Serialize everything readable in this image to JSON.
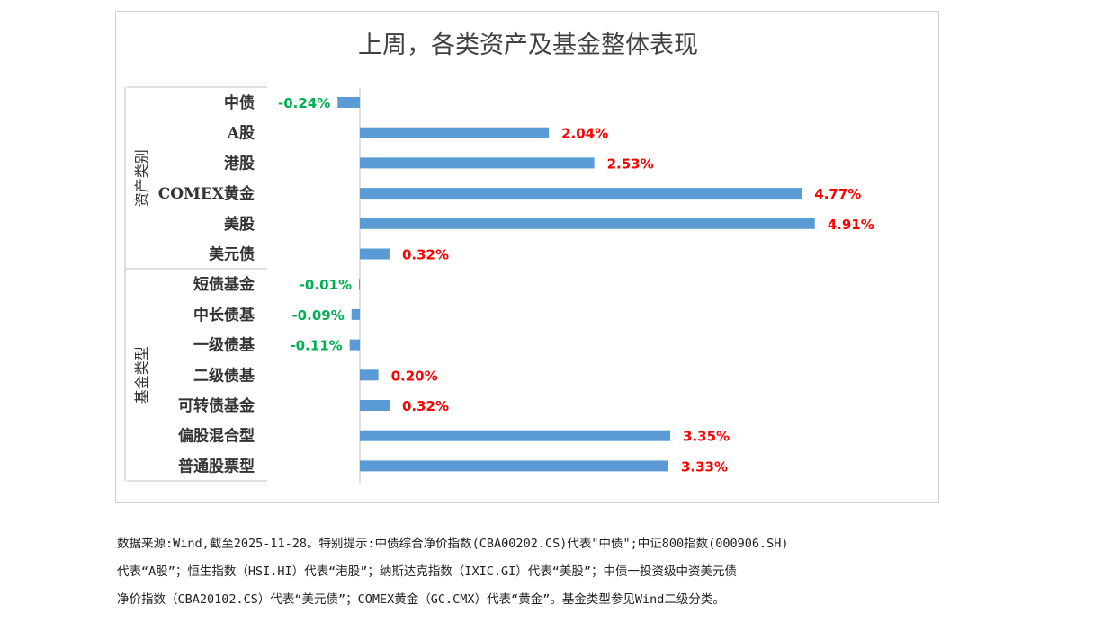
{
  "chart_data": {
    "type": "bar",
    "orientation": "horizontal",
    "title": "上周，各类资产及基金整体表现",
    "groups": [
      {
        "name": "资产类别",
        "categories": [
          "中债",
          "A股",
          "港股",
          "COMEX黄金",
          "美股",
          "美元债"
        ],
        "values": [
          -0.24,
          2.04,
          2.53,
          4.77,
          4.91,
          0.32
        ],
        "labels": [
          "-0.24%",
          "2.04%",
          "2.53%",
          "4.77%",
          "4.91%",
          "0.32%"
        ]
      },
      {
        "name": "基金类型",
        "categories": [
          "短债基金",
          "中长债基",
          "一级债基",
          "二级债基",
          "可转债基金",
          "偏股混合型",
          "普通股票型"
        ],
        "values": [
          -0.01,
          -0.09,
          -0.11,
          0.2,
          0.32,
          3.35,
          3.33
        ],
        "labels": [
          "-0.01%",
          "-0.09%",
          "-0.11%",
          "0.20%",
          "0.32%",
          "3.35%",
          "3.33%"
        ]
      }
    ],
    "unit": "%",
    "xlim": [
      -0.3,
      5.0
    ],
    "colors": {
      "bar": "#5b9bd5",
      "positive_label": "#ff0000",
      "negative_label": "#00b050",
      "title": "#404040",
      "category": "#333333",
      "axis": "#bfbfbf"
    }
  },
  "note": {
    "lines": [
      "数据来源:Wind,截至2025-11-28。特别提示:中债综合净价指数(CBA00202.CS)代表\"中债\";中证800指数(000906.SH)",
      "代表“A股”；恒生指数（HSI.HI）代表“港股”；纳斯达克指数（IXIC.GI）代表“美股”；中债一投资级中资美元债",
      "净价指数（CBA20102.CS）代表“美元债”；COMEX黄金（GC.CMX）代表“黄金”。基金类型参见Wind二级分类。"
    ]
  }
}
